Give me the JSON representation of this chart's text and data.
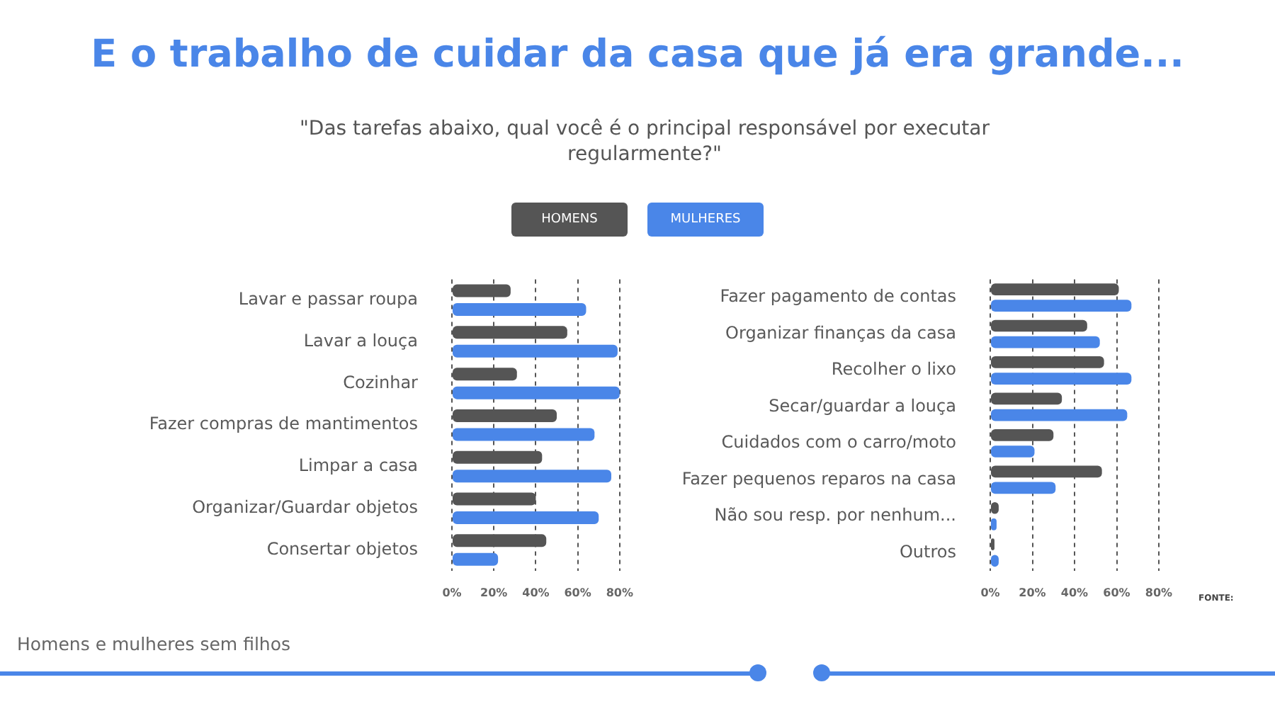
{
  "chart_data": [
    {
      "type": "bar",
      "orientation": "horizontal",
      "title": "E o trabalho de cuidar da casa que já era grande...",
      "subtitle": "\"Das tarefas abaixo, qual você é o principal responsável por executar regularmente?\"",
      "annotations": [
        "Homens e mulheres sem filhos",
        "FONTE:"
      ],
      "categories": [
        "Lavar e passar roupa",
        "Lavar a louça",
        "Cozinhar",
        "Fazer compras de mantimentos",
        "Limpar a casa",
        "Organizar/Guardar objetos",
        "Consertar objetos"
      ],
      "series": [
        {
          "name": "HOMENS",
          "color": "#555555",
          "values": [
            28,
            55,
            31,
            50,
            43,
            40,
            45
          ]
        },
        {
          "name": "MULHERES",
          "color": "#4a86e8",
          "values": [
            64,
            79,
            80,
            68,
            76,
            70,
            22
          ]
        }
      ],
      "xlim": [
        0,
        80
      ],
      "xticks": [
        {
          "value": 0,
          "label": "0%"
        },
        {
          "value": 20,
          "label": "20%"
        },
        {
          "value": 40,
          "label": "40%"
        },
        {
          "value": 60,
          "label": "60%"
        },
        {
          "value": 80,
          "label": "80%"
        }
      ],
      "grid": "x",
      "legend": "top"
    },
    {
      "type": "bar",
      "orientation": "horizontal",
      "categories": [
        "Fazer pagamento de contas",
        "Organizar finanças da casa",
        "Recolher o lixo",
        "Secar/guardar a louça",
        "Cuidados com o carro/moto",
        "Fazer pequenos reparos na casa",
        "Não sou resp. por nenhum...",
        "Outros"
      ],
      "series": [
        {
          "color": "#555555",
          "values": [
            61,
            46,
            54,
            34,
            30,
            53,
            4,
            2
          ]
        },
        {
          "color": "#4a86e8",
          "values": [
            67,
            52,
            67,
            65,
            21,
            31,
            3,
            4
          ]
        }
      ],
      "xlim": [
        0,
        80
      ],
      "xticks": [
        {
          "value": 0,
          "label": "0%"
        },
        {
          "value": 20,
          "label": "20%"
        },
        {
          "value": 40,
          "label": "40%"
        },
        {
          "value": 60,
          "label": "60%"
        },
        {
          "value": 80,
          "label": "80%"
        }
      ],
      "grid": "x"
    }
  ]
}
